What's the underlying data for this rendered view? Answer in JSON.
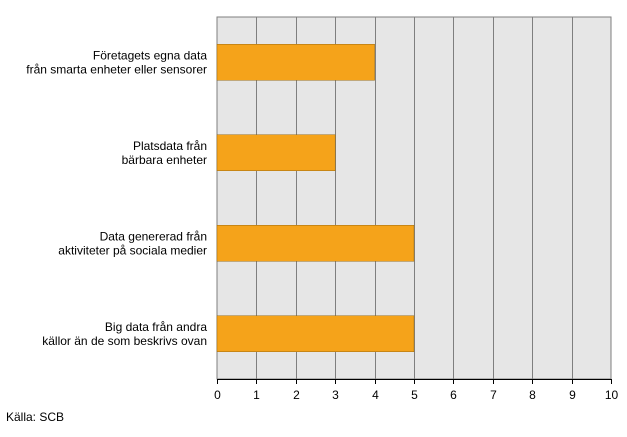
{
  "chart_data": {
    "type": "bar",
    "orientation": "horizontal",
    "categories": [
      [
        "Företagets egna data",
        "från smarta enheter eller sensorer"
      ],
      [
        "Platsdata från",
        "bärbara enheter"
      ],
      [
        "Data genererad från",
        "aktiviteter på sociala medier"
      ],
      [
        "Big data från andra",
        "källor än de som beskrivs ovan"
      ]
    ],
    "values": [
      4,
      3,
      5,
      5
    ],
    "xlim": [
      0,
      10
    ],
    "xticks": [
      "0",
      "1",
      "2",
      "3",
      "4",
      "5",
      "6",
      "7",
      "8",
      "9",
      "10"
    ],
    "grid": "vertical",
    "bar_color": "#f5a31a",
    "plot_background": "#e6e6e6",
    "title": "",
    "xlabel": "",
    "ylabel": ""
  },
  "source": "Källa: SCB"
}
